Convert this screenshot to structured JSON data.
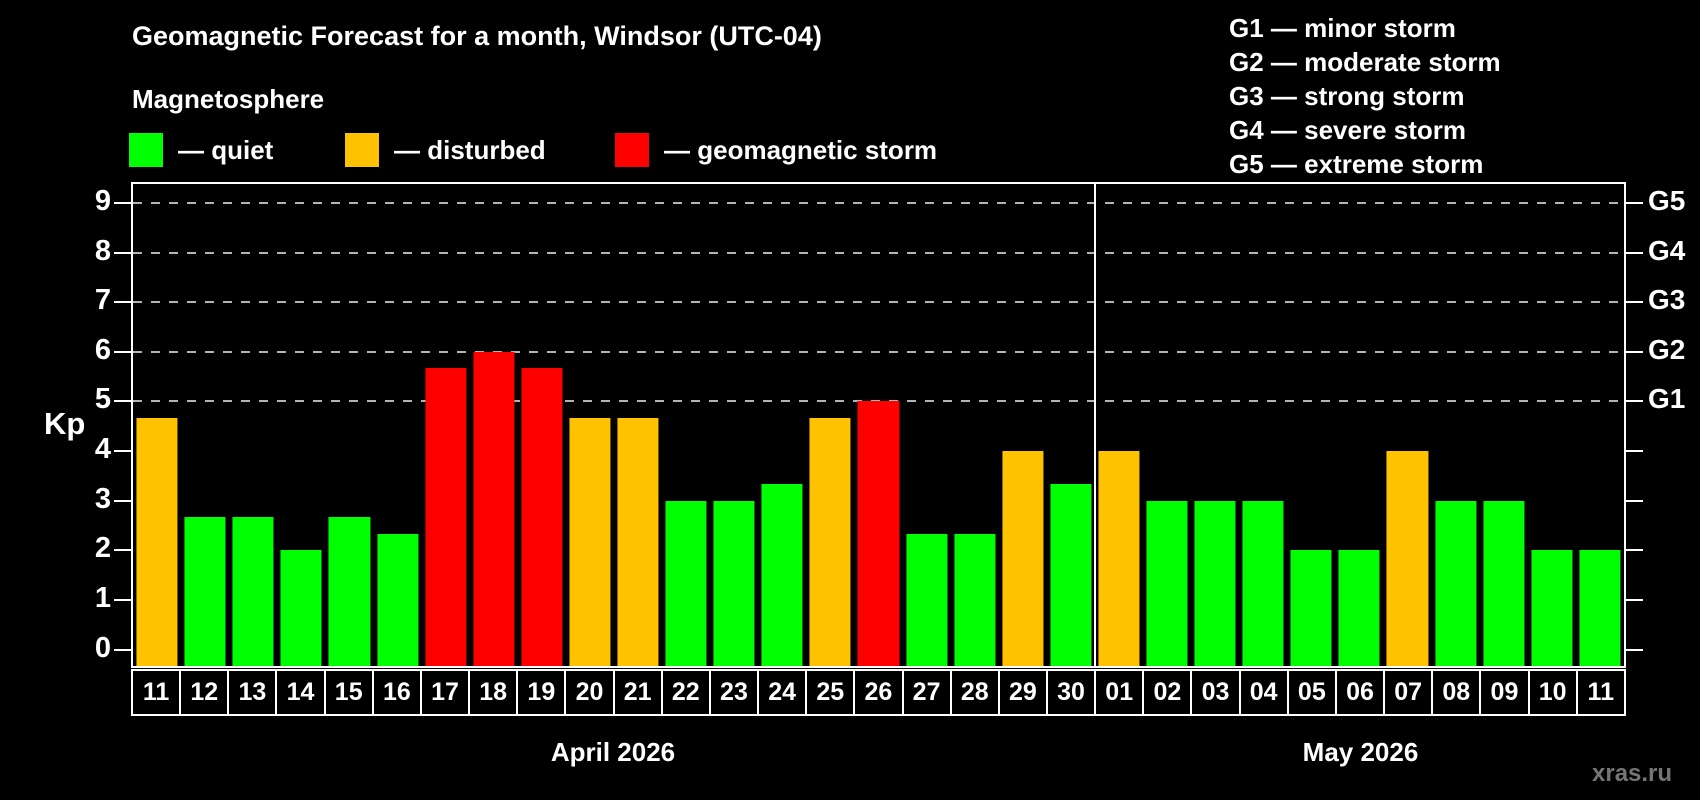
{
  "header": {
    "title": "Geomagnetic Forecast for a month, Windsor (UTC-04)",
    "subtitle": "Magnetosphere",
    "legend": [
      {
        "status": "quiet",
        "label": "— quiet"
      },
      {
        "status": "disturbed",
        "label": "— disturbed"
      },
      {
        "status": "storm",
        "label": "— geomagnetic storm"
      }
    ],
    "g_legend": [
      "G1 — minor storm",
      "G2 — moderate storm",
      "G3 — strong storm",
      "G4 — severe storm",
      "G5 — extreme storm"
    ]
  },
  "chart_data": {
    "type": "bar",
    "title": "Geomagnetic Forecast for a month, Windsor (UTC-04)",
    "ylabel": "Kp",
    "ylim": [
      0,
      9
    ],
    "y_ticks": [
      0,
      1,
      2,
      3,
      4,
      5,
      6,
      7,
      8,
      9
    ],
    "gridlines_at": [
      5,
      6,
      7,
      8,
      9
    ],
    "grid_style": "dashed horizontal lines at storm levels only",
    "right_axis_labels": [
      {
        "level": 5,
        "label": "G1"
      },
      {
        "level": 6,
        "label": "G2"
      },
      {
        "level": 7,
        "label": "G3"
      },
      {
        "level": 8,
        "label": "G4"
      },
      {
        "level": 9,
        "label": "G5"
      }
    ],
    "categories": [
      "11",
      "12",
      "13",
      "14",
      "15",
      "16",
      "17",
      "18",
      "19",
      "20",
      "21",
      "22",
      "23",
      "24",
      "25",
      "26",
      "27",
      "28",
      "29",
      "30",
      "01",
      "02",
      "03",
      "04",
      "05",
      "06",
      "07",
      "08",
      "09",
      "10",
      "11"
    ],
    "values": [
      4.67,
      2.67,
      2.67,
      2.0,
      2.67,
      2.33,
      5.67,
      6.0,
      5.67,
      4.67,
      4.67,
      3.0,
      3.0,
      3.33,
      4.67,
      5.0,
      2.33,
      2.33,
      4.0,
      3.33,
      4.0,
      3.0,
      3.0,
      3.0,
      2.0,
      2.0,
      4.0,
      3.0,
      3.0,
      2.0,
      2.0
    ],
    "statuses": [
      "disturbed",
      "quiet",
      "quiet",
      "quiet",
      "quiet",
      "quiet",
      "storm",
      "storm",
      "storm",
      "disturbed",
      "disturbed",
      "quiet",
      "quiet",
      "quiet",
      "disturbed",
      "storm",
      "quiet",
      "quiet",
      "disturbed",
      "quiet",
      "disturbed",
      "quiet",
      "quiet",
      "quiet",
      "quiet",
      "quiet",
      "disturbed",
      "quiet",
      "quiet",
      "quiet",
      "quiet"
    ],
    "months": [
      {
        "label": "April 2026",
        "days": 20
      },
      {
        "label": "May 2026",
        "days": 11
      }
    ]
  },
  "colors": {
    "quiet": "#00ff00",
    "disturbed": "#ffc200",
    "storm": "#ff0000",
    "background": "#000000",
    "text": "#ffffff",
    "grid": "#b3b3b3",
    "watermark": "#757575"
  },
  "watermark": "xras.ru"
}
